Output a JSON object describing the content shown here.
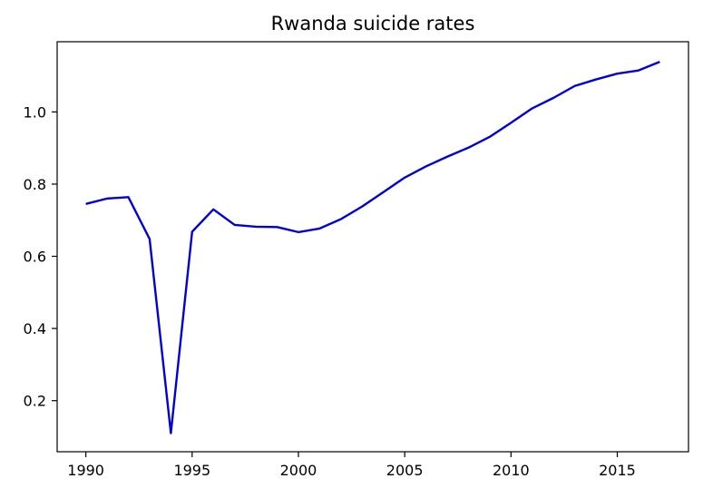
{
  "chart_data": {
    "type": "line",
    "title": "Rwanda suicide rates",
    "xlabel": "",
    "ylabel": "",
    "xlim": [
      1988.65,
      2018.35
    ],
    "ylim": [
      0.0585,
      1.1945
    ],
    "xticks": [
      1990,
      1995,
      2000,
      2005,
      2010,
      2015
    ],
    "yticks": [
      0.2,
      0.4,
      0.6,
      0.8,
      1.0
    ],
    "xtick_labels": [
      "1990",
      "1995",
      "2000",
      "2005",
      "2010",
      "2015"
    ],
    "ytick_labels": [
      "0.2",
      "0.4",
      "0.6",
      "0.8",
      "1.0"
    ],
    "grid": false,
    "legend": "none",
    "series": [
      {
        "color": "#0000dd",
        "x": [
          1990,
          1991,
          1992,
          1993,
          1994,
          1995,
          1996,
          1997,
          1998,
          1999,
          2000,
          2001,
          2002,
          2003,
          2004,
          2005,
          2006,
          2007,
          2008,
          2009,
          2010,
          2011,
          2012,
          2013,
          2014,
          2015,
          2016,
          2017
        ],
        "y": [
          0.745,
          0.76,
          0.764,
          0.648,
          0.11,
          0.668,
          0.73,
          0.687,
          0.682,
          0.681,
          0.667,
          0.677,
          0.703,
          0.738,
          0.778,
          0.818,
          0.849,
          0.876,
          0.901,
          0.931,
          0.97,
          1.01,
          1.039,
          1.072,
          1.09,
          1.106,
          1.115,
          1.139
        ]
      }
    ]
  }
}
